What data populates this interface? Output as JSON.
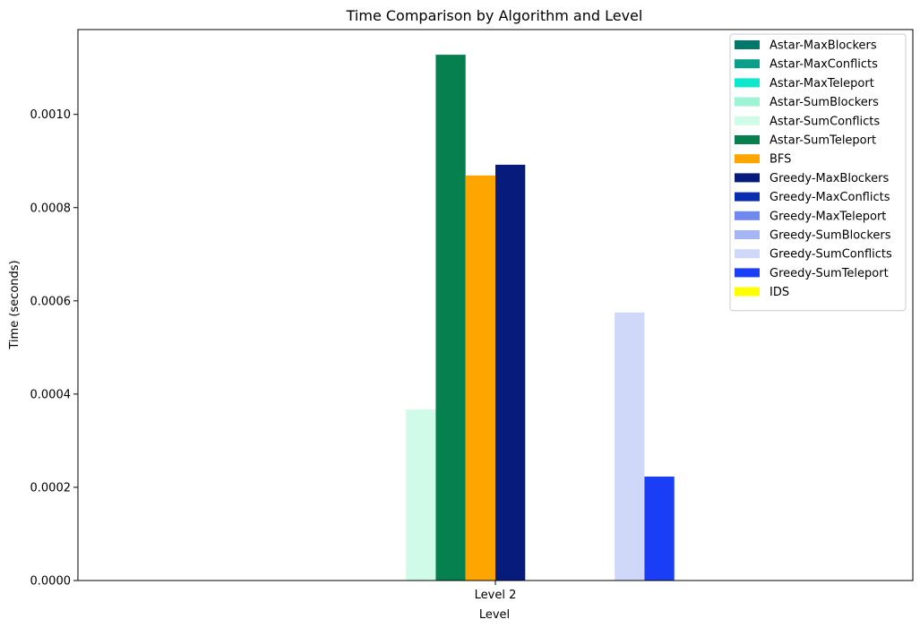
{
  "chart_data": {
    "type": "bar",
    "title": "Time Comparison by Algorithm and Level",
    "xlabel": "Level",
    "ylabel": "Time (seconds)",
    "categories": [
      "Level 2"
    ],
    "ylim": [
      0,
      0.001182
    ],
    "yticks": [
      0.0,
      0.0002,
      0.0004,
      0.0006,
      0.0008,
      0.001
    ],
    "ytick_labels": [
      "0.0000",
      "0.0002",
      "0.0004",
      "0.0006",
      "0.0008",
      "0.0010"
    ],
    "grid": false,
    "legend_position": "top-right",
    "series": [
      {
        "name": "Astar-MaxBlockers",
        "color": "#02776a",
        "values": [
          0
        ]
      },
      {
        "name": "Astar-MaxConflicts",
        "color": "#0b9e8a",
        "values": [
          0
        ]
      },
      {
        "name": "Astar-MaxTeleport",
        "color": "#0ce8cb",
        "values": [
          0
        ]
      },
      {
        "name": "Astar-SumBlockers",
        "color": "#9ef5d6",
        "values": [
          0
        ]
      },
      {
        "name": "Astar-SumConflicts",
        "color": "#d0fbe8",
        "values": [
          0.000367
        ]
      },
      {
        "name": "Astar-SumTeleport",
        "color": "#06804e",
        "values": [
          0.001128
        ]
      },
      {
        "name": "BFS",
        "color": "#ffa500",
        "values": [
          0.000869
        ]
      },
      {
        "name": "Greedy-MaxBlockers",
        "color": "#061b7b",
        "values": [
          0.000892
        ]
      },
      {
        "name": "Greedy-MaxConflicts",
        "color": "#0a2db0",
        "values": [
          0
        ]
      },
      {
        "name": "Greedy-MaxTeleport",
        "color": "#7089ee",
        "values": [
          0
        ]
      },
      {
        "name": "Greedy-SumBlockers",
        "color": "#a5b5f6",
        "values": [
          0
        ]
      },
      {
        "name": "Greedy-SumConflicts",
        "color": "#d0d8fa",
        "values": [
          0.000575
        ]
      },
      {
        "name": "Greedy-SumTeleport",
        "color": "#1a3ef5",
        "values": [
          0.000223
        ]
      },
      {
        "name": "IDS",
        "color": "#ffff00",
        "values": [
          0
        ]
      }
    ]
  }
}
